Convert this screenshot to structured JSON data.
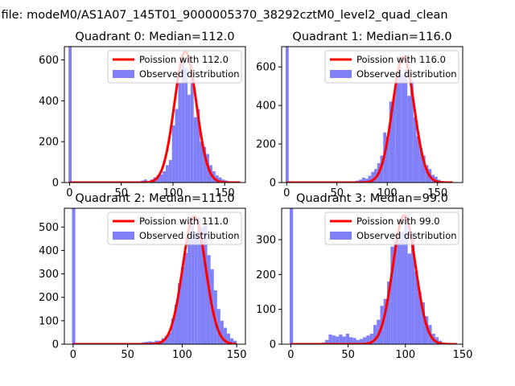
{
  "figure": {
    "suptitle": "a file: modeM0/AS1A07_145T01_9000005370_38292cztM0_level2_quad_clean"
  },
  "colors": {
    "histogram": "#8080f8",
    "poisson_line": "#ff0000",
    "axes": "#000000"
  },
  "chart_data": [
    {
      "type": "bar",
      "title": "Quadrant 0: Median=112.0",
      "xticks": [
        "0",
        "50",
        "100",
        "150"
      ],
      "yticks": [
        "0",
        "200",
        "400",
        "600"
      ],
      "xlim": [
        -5,
        170
      ],
      "ylim": [
        0,
        665
      ],
      "legend": {
        "position": "top-right",
        "entries": [
          "Poission with 112.0",
          "Observed distribution"
        ]
      },
      "poisson": {
        "label": "Poission with 112.0",
        "mean": 112,
        "amp": 640,
        "sigma": 10.6,
        "x_range": [
          0,
          165
        ]
      },
      "histogram": {
        "label": "Observed distribution",
        "bins": [
          [
            -1,
            2,
            665
          ],
          [
            60,
            63,
            3
          ],
          [
            63,
            66,
            3
          ],
          [
            66,
            69,
            5
          ],
          [
            69,
            72,
            10
          ],
          [
            72,
            75,
            15
          ],
          [
            75,
            78,
            8
          ],
          [
            78,
            81,
            15
          ],
          [
            81,
            84,
            25
          ],
          [
            84,
            87,
            35
          ],
          [
            87,
            90,
            40
          ],
          [
            90,
            93,
            55
          ],
          [
            93,
            96,
            85
          ],
          [
            96,
            99,
            110
          ],
          [
            99,
            102,
            280
          ],
          [
            102,
            105,
            360
          ],
          [
            105,
            108,
            490
          ],
          [
            108,
            111,
            610
          ],
          [
            111,
            114,
            560
          ],
          [
            114,
            117,
            430
          ],
          [
            117,
            120,
            520
          ],
          [
            120,
            123,
            320
          ],
          [
            123,
            126,
            360
          ],
          [
            126,
            129,
            200
          ],
          [
            129,
            132,
            175
          ],
          [
            132,
            135,
            140
          ],
          [
            135,
            138,
            85
          ],
          [
            138,
            141,
            55
          ],
          [
            141,
            144,
            35
          ],
          [
            144,
            147,
            25
          ],
          [
            147,
            150,
            15
          ],
          [
            150,
            153,
            10
          ],
          [
            153,
            156,
            5
          ],
          [
            156,
            159,
            3
          ]
        ]
      }
    },
    {
      "type": "bar",
      "title": "Quadrant 1: Median=116.0",
      "xticks": [
        "0",
        "50",
        "100",
        "150"
      ],
      "yticks": [
        "0",
        "200",
        "400",
        "600"
      ],
      "xlim": [
        -5,
        175
      ],
      "ylim": [
        0,
        705
      ],
      "legend": {
        "position": "top-right",
        "entries": [
          "Poission with 116.0",
          "Observed distribution"
        ]
      },
      "poisson": {
        "label": "Poission with 116.0",
        "mean": 116,
        "amp": 650,
        "sigma": 10.8,
        "x_range": [
          0,
          165
        ]
      },
      "histogram": {
        "label": "Observed distribution",
        "bins": [
          [
            -1,
            2,
            705
          ],
          [
            63,
            66,
            3
          ],
          [
            66,
            69,
            5
          ],
          [
            69,
            72,
            10
          ],
          [
            72,
            75,
            15
          ],
          [
            75,
            78,
            25
          ],
          [
            78,
            81,
            20
          ],
          [
            81,
            84,
            35
          ],
          [
            84,
            87,
            55
          ],
          [
            87,
            90,
            70
          ],
          [
            90,
            93,
            100
          ],
          [
            93,
            96,
            140
          ],
          [
            96,
            99,
            260
          ],
          [
            99,
            102,
            240
          ],
          [
            102,
            105,
            420
          ],
          [
            105,
            108,
            440
          ],
          [
            108,
            111,
            520
          ],
          [
            111,
            114,
            600
          ],
          [
            114,
            117,
            560
          ],
          [
            117,
            120,
            590
          ],
          [
            120,
            123,
            450
          ],
          [
            123,
            126,
            530
          ],
          [
            126,
            129,
            340
          ],
          [
            129,
            132,
            240
          ],
          [
            132,
            135,
            180
          ],
          [
            135,
            138,
            140
          ],
          [
            138,
            141,
            90
          ],
          [
            141,
            144,
            70
          ],
          [
            144,
            147,
            40
          ],
          [
            147,
            150,
            30
          ],
          [
            150,
            153,
            15
          ],
          [
            153,
            156,
            8
          ],
          [
            156,
            159,
            4
          ]
        ]
      }
    },
    {
      "type": "bar",
      "title": "Quadrant 2: Median=111.0",
      "xticks": [
        "0",
        "50",
        "100",
        "150"
      ],
      "yticks": [
        "0",
        "100",
        "200",
        "300",
        "400",
        "500"
      ],
      "xlim": [
        -8,
        158
      ],
      "ylim": [
        0,
        580
      ],
      "legend": {
        "position": "top-right",
        "entries": [
          "Poission with 111.0",
          "Observed distribution"
        ]
      },
      "poisson": {
        "label": "Poission with 111.0",
        "mean": 111,
        "amp": 545,
        "sigma": 10.5,
        "x_range": [
          0,
          150
        ]
      },
      "histogram": {
        "label": "Observed distribution",
        "bins": [
          [
            -1,
            2,
            580
          ],
          [
            60,
            63,
            5
          ],
          [
            63,
            66,
            8
          ],
          [
            66,
            69,
            10
          ],
          [
            69,
            72,
            12
          ],
          [
            72,
            75,
            10
          ],
          [
            75,
            78,
            15
          ],
          [
            78,
            81,
            15
          ],
          [
            81,
            84,
            25
          ],
          [
            84,
            87,
            35
          ],
          [
            87,
            90,
            50
          ],
          [
            90,
            93,
            110
          ],
          [
            93,
            96,
            170
          ],
          [
            96,
            99,
            260
          ],
          [
            99,
            102,
            330
          ],
          [
            102,
            105,
            390
          ],
          [
            105,
            108,
            450
          ],
          [
            108,
            111,
            520
          ],
          [
            111,
            114,
            480
          ],
          [
            114,
            117,
            540
          ],
          [
            117,
            120,
            500
          ],
          [
            120,
            123,
            510
          ],
          [
            123,
            126,
            380
          ],
          [
            126,
            129,
            320
          ],
          [
            129,
            132,
            230
          ],
          [
            132,
            135,
            150
          ],
          [
            135,
            138,
            100
          ],
          [
            138,
            141,
            70
          ],
          [
            141,
            144,
            45
          ],
          [
            144,
            147,
            25
          ],
          [
            147,
            150,
            15
          ]
        ]
      }
    },
    {
      "type": "bar",
      "title": "Quadrant 3: Median=99.0",
      "xticks": [
        "0",
        "50",
        "100",
        "150"
      ],
      "yticks": [
        "0",
        "100",
        "200",
        "300"
      ],
      "xlim": [
        -8,
        150
      ],
      "ylim": [
        0,
        390
      ],
      "legend": {
        "position": "top-right",
        "entries": [
          "Poission with 99.0",
          "Observed distribution"
        ]
      },
      "poisson": {
        "label": "Poission with 99.0",
        "mean": 99,
        "amp": 370,
        "sigma": 9.9,
        "x_range": [
          0,
          145
        ]
      },
      "histogram": {
        "label": "Observed distribution",
        "bins": [
          [
            -1,
            2,
            390
          ],
          [
            27,
            30,
            5
          ],
          [
            30,
            33,
            12
          ],
          [
            33,
            36,
            28
          ],
          [
            36,
            39,
            25
          ],
          [
            39,
            42,
            22
          ],
          [
            42,
            45,
            28
          ],
          [
            45,
            48,
            22
          ],
          [
            48,
            51,
            30
          ],
          [
            51,
            54,
            20
          ],
          [
            54,
            57,
            18
          ],
          [
            57,
            60,
            12
          ],
          [
            60,
            63,
            15
          ],
          [
            63,
            66,
            20
          ],
          [
            66,
            69,
            25
          ],
          [
            69,
            72,
            30
          ],
          [
            72,
            75,
            55
          ],
          [
            75,
            78,
            70
          ],
          [
            78,
            81,
            110
          ],
          [
            81,
            84,
            130
          ],
          [
            84,
            87,
            180
          ],
          [
            87,
            90,
            280
          ],
          [
            90,
            93,
            300
          ],
          [
            93,
            96,
            300
          ],
          [
            96,
            99,
            320
          ],
          [
            99,
            102,
            370
          ],
          [
            102,
            105,
            260
          ],
          [
            105,
            108,
            320
          ],
          [
            108,
            111,
            210
          ],
          [
            111,
            114,
            150
          ],
          [
            114,
            117,
            120
          ],
          [
            117,
            120,
            80
          ],
          [
            120,
            123,
            55
          ],
          [
            123,
            126,
            30
          ],
          [
            126,
            129,
            20
          ],
          [
            129,
            132,
            10
          ],
          [
            132,
            135,
            5
          ],
          [
            135,
            138,
            3
          ]
        ]
      }
    }
  ]
}
